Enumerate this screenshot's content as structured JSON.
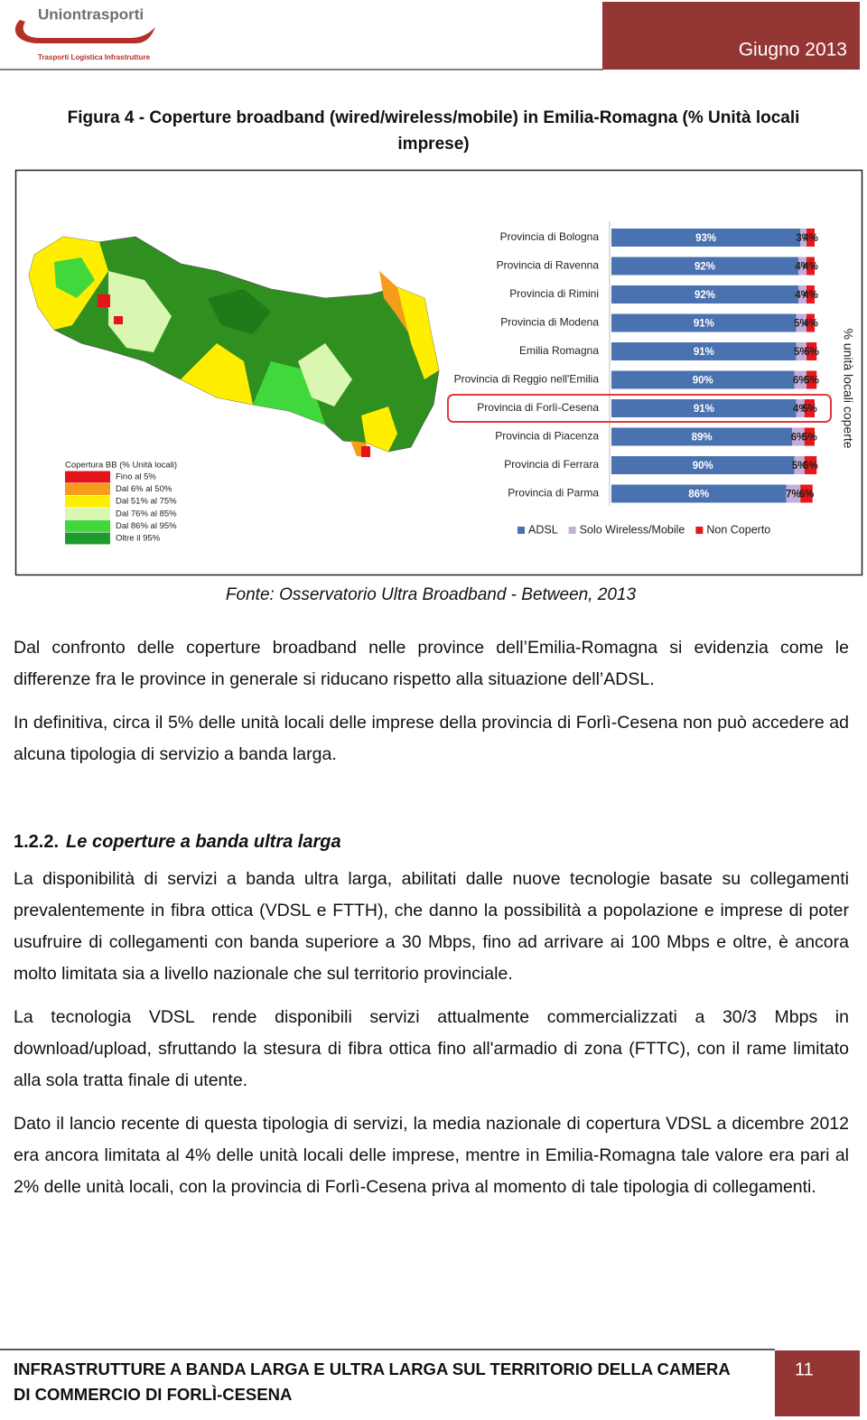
{
  "header": {
    "logo": "Uniontrasporti",
    "logo_tagline": "Trasporti Logistica Infrastrutture",
    "date": "Giugno 2013"
  },
  "figure": {
    "caption": "Figura 4 - Coperture broadband (wired/wireless/mobile) in Emilia-Romagna (% Unità locali imprese)",
    "source": "Fonte: Osservatorio Ultra Broadband - Between, 2013",
    "map_legend": {
      "title": "Copertura BB (% Unità locali)",
      "items": [
        {
          "label": "Fino al 5%",
          "color": "#e5141b"
        },
        {
          "label": "Dal 6% al 50%",
          "color": "#f59c1a"
        },
        {
          "label": "Dal 51% al 75%",
          "color": "#ffee00"
        },
        {
          "label": "Dal 76% al 85%",
          "color": "#d9f7b0"
        },
        {
          "label": "Dal 86% al 95%",
          "color": "#40d83c"
        },
        {
          "label": "Oltre il 95%",
          "color": "#1f9a2e"
        }
      ]
    }
  },
  "chart_data": {
    "type": "bar",
    "orientation": "horizontal",
    "stacked": true,
    "categories": [
      "Provincia di Bologna",
      "Provincia di Ravenna",
      "Provincia di Rimini",
      "Provincia di Modena",
      "Emilia Romagna",
      "Provincia di Reggio nell'Emilia",
      "Provincia di Forlì-Cesena",
      "Provincia di Piacenza",
      "Provincia di Ferrara",
      "Provincia di Parma"
    ],
    "series": [
      {
        "name": "ADSL",
        "color": "#4a72b0",
        "values": [
          93,
          92,
          92,
          91,
          91,
          90,
          91,
          89,
          90,
          86
        ],
        "value_labels": [
          "93%",
          "92%",
          "92%",
          "91%",
          "91%",
          "90%",
          "91%",
          "89%",
          "90%",
          "86%"
        ]
      },
      {
        "name": "Solo Wireless/Mobile",
        "color": "#c3aedb",
        "values": [
          3,
          4,
          4,
          5,
          5,
          6,
          4,
          6,
          5,
          7
        ],
        "value_labels": [
          "3%",
          "4%",
          "4%",
          "5%",
          "5%",
          "6%",
          "4%",
          "6%",
          "5%",
          "7%"
        ]
      },
      {
        "name": "Non Coperto",
        "color": "#e8171b",
        "values": [
          4,
          4,
          4,
          4,
          5,
          5,
          5,
          5,
          6,
          6
        ],
        "value_labels": [
          "4%",
          "4%",
          "4%",
          "4%",
          "5%",
          "5%",
          "5%",
          "5%",
          "6%",
          "6%"
        ]
      }
    ],
    "xlim": [
      0,
      100
    ],
    "x_label": "% unità locali coperte",
    "legend": "bottom",
    "highlight_index": 6
  },
  "body": {
    "paragraphs_1": [
      "Dal confronto delle coperture broadband nelle province dell’Emilia-Romagna si evidenzia come le differenze fra le province in generale si riducano rispetto alla situazione dell’ADSL.",
      "In definitiva, circa il 5% delle unità locali delle imprese della provincia di Forlì-Cesena non può accedere ad alcuna tipologia di servizio a banda larga."
    ],
    "section": {
      "number": "1.2.2.",
      "title": "Le coperture a banda ultra larga"
    },
    "paragraphs_2": [
      "La disponibilità di servizi a banda ultra larga, abilitati dalle nuove tecnologie basate su collegamenti prevalentemente in fibra ottica (VDSL e FTTH), che danno la possibilità a popolazione e imprese di poter usufruire di collegamenti con banda superiore a 30 Mbps, fino ad arrivare ai 100 Mbps e oltre, è ancora molto limitata sia a livello nazionale che sul territorio provinciale.",
      "La tecnologia VDSL rende disponibili servizi attualmente commercializzati a 30/3 Mbps in download/upload, sfruttando la stesura di fibra ottica fino all'armadio di zona (FTTC), con il rame limitato alla sola tratta finale di utente.",
      "Dato il lancio recente di questa tipologia di servizi, la media nazionale di copertura VDSL a dicembre 2012 era ancora limitata al 4% delle unità locali delle imprese, mentre in Emilia-Romagna tale valore era pari al 2% delle unità locali, con la provincia di Forlì-Cesena priva al momento di tale tipologia di collegamenti."
    ]
  },
  "footer": {
    "title_lines": [
      "INFRASTRUTTURE A BANDA LARGA E ULTRA LARGA SUL TERRITORIO DELLA CAMERA",
      "DI COMMERCIO DI FORLÌ-CESENA"
    ],
    "page": "11"
  }
}
